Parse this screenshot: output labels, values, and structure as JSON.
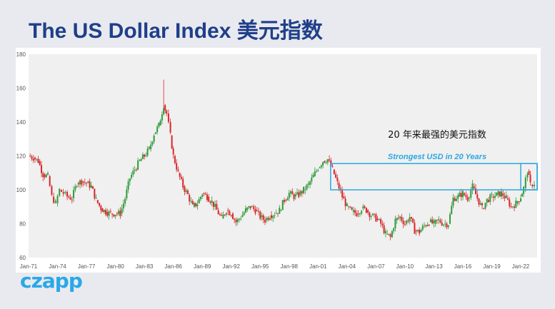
{
  "title": "The US Dollar Index 美元指数",
  "brand": "czapp",
  "colors": {
    "title": "#1f3f8a",
    "up": "#2e9b3a",
    "down": "#d8262a",
    "highlight": "#2aa7e0",
    "plot_bg": "#f0f0f0",
    "brand": "#29a8e8"
  },
  "chart_data": {
    "type": "candlestick",
    "title": "The US Dollar Index 美元指数",
    "xlabel": "",
    "ylabel": "",
    "ylim": [
      60,
      180
    ],
    "yticks": [
      60,
      80,
      100,
      120,
      140,
      160,
      180
    ],
    "xticks": [
      "Jan-71",
      "Jan-74",
      "Jan-77",
      "Jan-80",
      "Jan-83",
      "Jan-86",
      "Jan-89",
      "Jan-92",
      "Jan-95",
      "Jan-98",
      "Jan-01",
      "Jan-04",
      "Jan-07",
      "Jan-10",
      "Jan-13",
      "Jan-16",
      "Jan-19",
      "Jan-22"
    ],
    "xrange": [
      1971,
      2023.7
    ],
    "grid": false,
    "series": [
      {
        "values": [
          [
            1971,
            120
          ],
          [
            1971.5,
            119
          ],
          [
            1972,
            117
          ],
          [
            1972.5,
            109
          ],
          [
            1973,
            108
          ],
          [
            1973.4,
            96
          ],
          [
            1973.8,
            92
          ],
          [
            1974.2,
            100
          ],
          [
            1974.6,
            98
          ],
          [
            1975,
            96
          ],
          [
            1975.5,
            95
          ],
          [
            1976,
            104
          ],
          [
            1976.5,
            105
          ],
          [
            1977,
            104
          ],
          [
            1977.5,
            102
          ],
          [
            1978,
            94
          ],
          [
            1978.5,
            89
          ],
          [
            1979,
            87
          ],
          [
            1979.5,
            86
          ],
          [
            1980,
            86
          ],
          [
            1980.5,
            86
          ],
          [
            1981,
            95
          ],
          [
            1981.5,
            107
          ],
          [
            1982,
            112
          ],
          [
            1982.5,
            117
          ],
          [
            1983,
            120
          ],
          [
            1983.5,
            124
          ],
          [
            1984,
            133
          ],
          [
            1984.5,
            138
          ],
          [
            1985,
            150
          ],
          [
            1985.3,
            145
          ],
          [
            1985.7,
            132
          ],
          [
            1986,
            120
          ],
          [
            1986.5,
            110
          ],
          [
            1987,
            102
          ],
          [
            1987.5,
            97
          ],
          [
            1988,
            90
          ],
          [
            1988.5,
            92
          ],
          [
            1989,
            98
          ],
          [
            1989.5,
            96
          ],
          [
            1990,
            93
          ],
          [
            1990.5,
            88
          ],
          [
            1991,
            83
          ],
          [
            1991.5,
            88
          ],
          [
            1992,
            86
          ],
          [
            1992.5,
            81
          ],
          [
            1993,
            84
          ],
          [
            1993.5,
            88
          ],
          [
            1994,
            90
          ],
          [
            1994.5,
            88
          ],
          [
            1995,
            84
          ],
          [
            1995.5,
            82
          ],
          [
            1996,
            85
          ],
          [
            1996.5,
            86
          ],
          [
            1997,
            88
          ],
          [
            1997.5,
            94
          ],
          [
            1998,
            98
          ],
          [
            1998.5,
            96
          ],
          [
            1999,
            97
          ],
          [
            1999.5,
            100
          ],
          [
            2000,
            103
          ],
          [
            2000.5,
            108
          ],
          [
            2001,
            113
          ],
          [
            2001.5,
            117
          ],
          [
            2002,
            118
          ],
          [
            2002.5,
            112
          ],
          [
            2003,
            104
          ],
          [
            2003.5,
            96
          ],
          [
            2004,
            90
          ],
          [
            2004.5,
            87
          ],
          [
            2005,
            86
          ],
          [
            2005.5,
            89
          ],
          [
            2006,
            88
          ],
          [
            2006.5,
            85
          ],
          [
            2007,
            83
          ],
          [
            2007.5,
            80
          ],
          [
            2008,
            74
          ],
          [
            2008.5,
            72
          ],
          [
            2009,
            82
          ],
          [
            2009.5,
            84
          ],
          [
            2010,
            80
          ],
          [
            2010.5,
            84
          ],
          [
            2011,
            76
          ],
          [
            2011.5,
            75
          ],
          [
            2012,
            79
          ],
          [
            2012.5,
            81
          ],
          [
            2013,
            80
          ],
          [
            2013.5,
            82
          ],
          [
            2014,
            80
          ],
          [
            2014.5,
            80
          ],
          [
            2015,
            95
          ],
          [
            2015.5,
            96
          ],
          [
            2016,
            98
          ],
          [
            2016.5,
            95
          ],
          [
            2017,
            102
          ],
          [
            2017.5,
            95
          ],
          [
            2018,
            89
          ],
          [
            2018.5,
            94
          ],
          [
            2019,
            96
          ],
          [
            2019.5,
            97
          ],
          [
            2020,
            98
          ],
          [
            2020.5,
            95
          ],
          [
            2021,
            90
          ],
          [
            2021.5,
            92
          ],
          [
            2022,
            96
          ],
          [
            2022.3,
            101
          ],
          [
            2022.7,
            111
          ],
          [
            2023,
            103
          ],
          [
            2023.4,
            104
          ]
        ]
      }
    ],
    "annotations": [
      {
        "text": "20 年来最强的美元指数"
      },
      {
        "text": "Strongest USD in 20 Years"
      }
    ]
  }
}
